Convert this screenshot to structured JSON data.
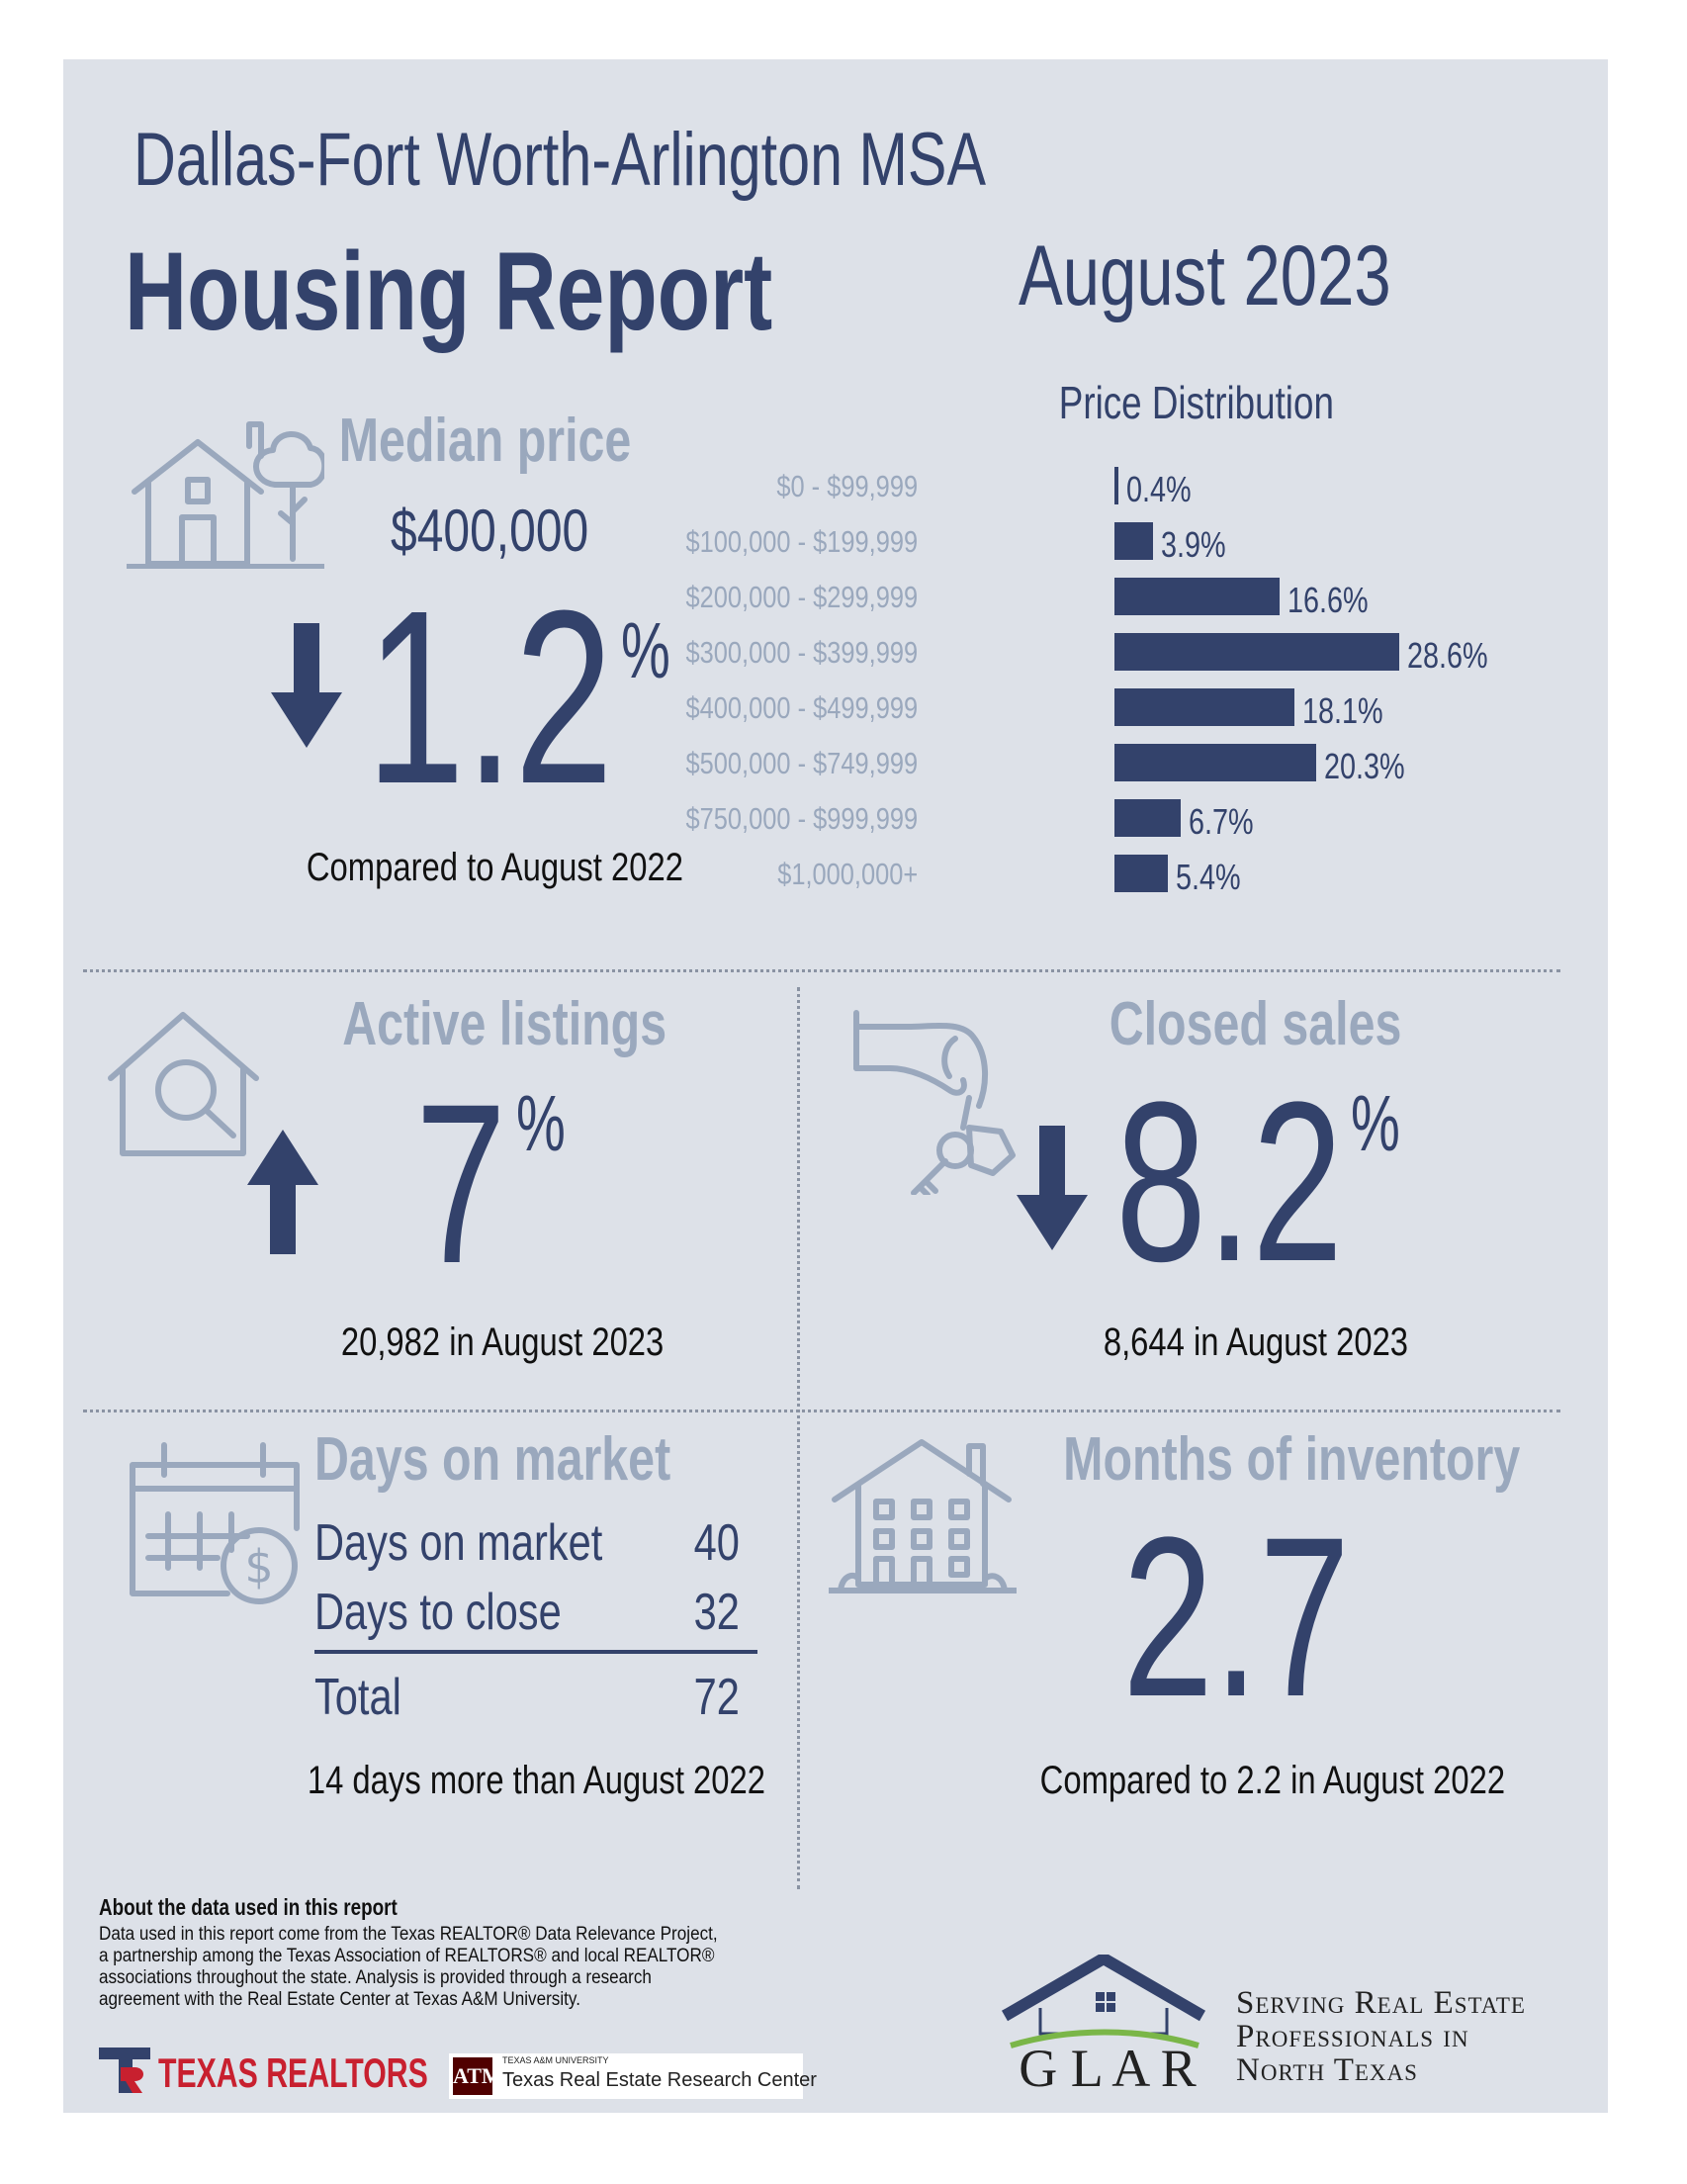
{
  "header": {
    "region": "Dallas-Fort Worth-Arlington MSA",
    "title": "Housing Report",
    "date": "August 2023"
  },
  "median_price": {
    "title": "Median price",
    "value": "$400,000",
    "direction": "down",
    "change": "1.2",
    "unit": "%",
    "caption": "Compared to August 2022"
  },
  "price_distribution": {
    "title": "Price Distribution",
    "rows": [
      {
        "label": "$0 - $99,999",
        "value": "0.4%"
      },
      {
        "label": "$100,000 - $199,999",
        "value": "3.9%"
      },
      {
        "label": "$200,000 - $299,999",
        "value": "16.6%"
      },
      {
        "label": "$300,000 - $399,999",
        "value": "28.6%"
      },
      {
        "label": "$400,000 - $499,999",
        "value": "18.1%"
      },
      {
        "label": "$500,000 - $749,999",
        "value": "20.3%"
      },
      {
        "label": "$750,000 - $999,999",
        "value": "6.7%"
      },
      {
        "label": "$1,000,000+",
        "value": "5.4%"
      }
    ]
  },
  "chart_data": {
    "type": "bar",
    "orientation": "horizontal",
    "title": "Price Distribution",
    "categories": [
      "$0 - $99,999",
      "$100,000 - $199,999",
      "$200,000 - $299,999",
      "$300,000 - $399,999",
      "$400,000 - $499,999",
      "$500,000 - $749,999",
      "$750,000 - $999,999",
      "$1,000,000+"
    ],
    "values": [
      0.4,
      3.9,
      16.6,
      28.6,
      18.1,
      20.3,
      6.7,
      5.4
    ],
    "unit": "%",
    "xlim": [
      0,
      28.6
    ]
  },
  "active_listings": {
    "title": "Active listings",
    "direction": "up",
    "change": "7",
    "unit": "%",
    "caption": "20,982 in August 2023"
  },
  "closed_sales": {
    "title": "Closed sales",
    "direction": "down",
    "change": "8.2",
    "unit": "%",
    "caption": "8,644 in August 2023"
  },
  "days_on_market": {
    "title": "Days on market",
    "rows": [
      {
        "label": "Days on market",
        "value": "40"
      },
      {
        "label": "Days to close",
        "value": "32"
      }
    ],
    "total": {
      "label": "Total",
      "value": "72"
    },
    "caption": "14 days more than August 2022"
  },
  "months_inventory": {
    "title": "Months of inventory",
    "value": "2.7",
    "caption": "Compared to 2.2 in August 2022"
  },
  "footer": {
    "about_title": "About the data used in this report",
    "about_text": "Data used in this report come from the Texas REALTOR® Data Relevance Project, a partnership among the Texas Association of REALTORS® and local REALTOR® associations throughout the state. Analysis is provided through a research agreement with the Real Estate Center at Texas A&M University.",
    "texas_realtors": "TEXAS REALTORS",
    "tamu_small": "TEXAS A&M UNIVERSITY",
    "tamu_center": "Texas Real Estate Research Center",
    "glar": "G L A R",
    "tagline": [
      "Serving Real Estate",
      "Professionals in",
      "North Texas"
    ]
  },
  "colors": {
    "navy": "#33426b",
    "pale": "#9aa8bd",
    "panel": "#dde1e8",
    "maroon": "#500000",
    "realtor_red": "#c8202f",
    "glar_green": "#7ab648"
  }
}
